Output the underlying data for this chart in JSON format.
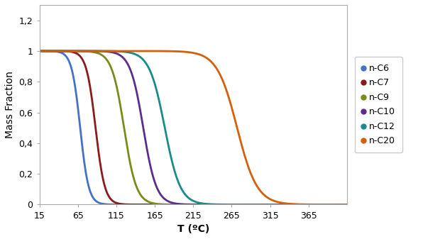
{
  "title": "",
  "xlabel": "T (ºC)",
  "ylabel": "Mass Fraction",
  "xlim": [
    15,
    415
  ],
  "ylim": [
    0,
    1.3
  ],
  "xticks": [
    15,
    65,
    115,
    165,
    215,
    265,
    315,
    365
  ],
  "yticks": [
    0,
    0.2,
    0.4,
    0.6,
    0.8,
    1.0,
    1.2
  ],
  "ytick_labels": [
    "0",
    "0,2",
    "0,4",
    "0,6",
    "0,8",
    "1",
    "1,2"
  ],
  "series": [
    {
      "label": "n-C6",
      "color": "#4472C4",
      "T_mid": 68,
      "scale": 5.5
    },
    {
      "label": "n-C7",
      "color": "#8B1A1A",
      "T_mid": 88,
      "scale": 6.0
    },
    {
      "label": "n-C9",
      "color": "#7B8B1A",
      "T_mid": 125,
      "scale": 8.0
    },
    {
      "label": "n-C10",
      "color": "#5B2D8E",
      "T_mid": 150,
      "scale": 8.5
    },
    {
      "label": "n-C12",
      "color": "#1A8B8B",
      "T_mid": 178,
      "scale": 10.0
    },
    {
      "label": "n-C20",
      "color": "#D4600A",
      "T_mid": 272,
      "scale": 13.0
    }
  ],
  "background_color": "#ffffff",
  "line_width": 2.0
}
